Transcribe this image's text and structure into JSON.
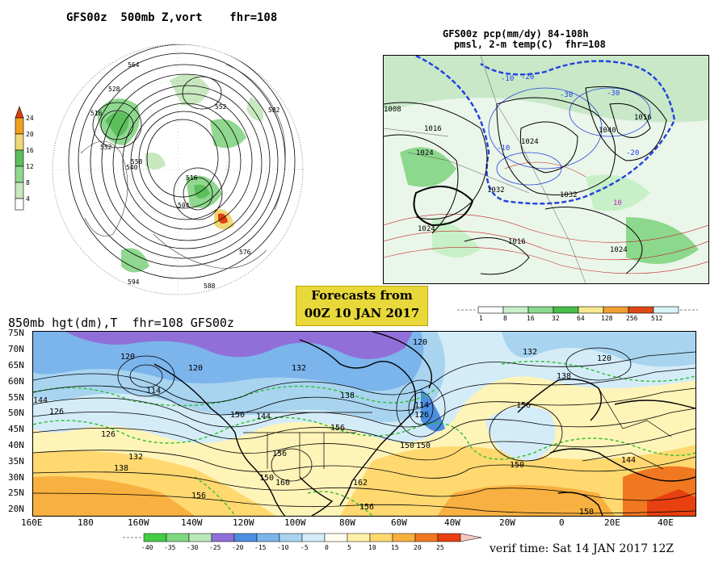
{
  "panels": {
    "polar": {
      "title": "GFS00z  500mb Z,vort    fhr=108",
      "colorbar_ticks": [
        "24",
        "20",
        "16",
        "12",
        "8",
        "4"
      ],
      "contour_labels": [
        "564",
        "528",
        "516",
        "504",
        "552",
        "582",
        "588",
        "576",
        "540",
        "594",
        "558",
        "552",
        "516"
      ]
    },
    "precip": {
      "title_line1": "GFS00z pcp(mm/dy) 84-108h",
      "title_line2": "pmsl, 2-m temp(C)  fhr=108",
      "colorbar_ticks": [
        "1",
        "8",
        "16",
        "32",
        "64",
        "128",
        "256",
        "512"
      ],
      "isobar_labels": [
        "1008",
        "1016",
        "1024",
        "1032",
        "1040",
        "1024",
        "1016",
        "1024",
        "1032",
        "1016",
        "1024"
      ],
      "temp_labels": [
        "-10",
        "-20",
        "-30",
        "-10",
        "-30",
        "-20",
        "10"
      ]
    },
    "banner": {
      "line1": "Forecasts from",
      "line2": "00Z 10 JAN 2017"
    },
    "map850": {
      "title": "850mb hgt(dm),T  fhr=108 GFS00z",
      "lat_labels": [
        "75N",
        "70N",
        "65N",
        "60N",
        "55N",
        "50N",
        "45N",
        "40N",
        "35N",
        "30N",
        "25N",
        "20N"
      ],
      "lon_labels": [
        "160E",
        "180",
        "160W",
        "140W",
        "120W",
        "100W",
        "80W",
        "60W",
        "40W",
        "20W",
        "0",
        "20E",
        "40E"
      ],
      "contour_labels": [
        "120",
        "132",
        "120",
        "144",
        "150",
        "114",
        "126",
        "144",
        "138",
        "132",
        "126",
        "156",
        "150",
        "160",
        "156",
        "162",
        "138",
        "156",
        "150",
        "114",
        "126",
        "150",
        "120",
        "132",
        "120",
        "138",
        "156",
        "144",
        "150",
        "150",
        "156"
      ],
      "colorbar_ticks": [
        "-40",
        "-35",
        "-30",
        "-25",
        "-20",
        "-15",
        "-10",
        "-5",
        "0",
        "5",
        "10",
        "15",
        "20",
        "25"
      ]
    },
    "verif": "verif time: Sat 14 JAN 2017 12Z"
  },
  "colors": {
    "vort_scale": [
      "#ffffff",
      "#c8e8c0",
      "#90d890",
      "#5cbf5c",
      "#f0d878",
      "#f0a020",
      "#e04010"
    ],
    "precip_scale": [
      "#ffffff",
      "#c8f0c8",
      "#8cd88c",
      "#48c048",
      "#f8e890",
      "#f0a030",
      "#e04818",
      "#d8f4f8"
    ],
    "temp_scale": [
      "#44cc44",
      "#80d880",
      "#b8e8b8",
      "#9070d8",
      "#4c8ee0",
      "#7cb4ec",
      "#a8d4f0",
      "#d4ecf8",
      "#fffff0",
      "#fff0a8",
      "#ffd870",
      "#f8b040",
      "#f07820",
      "#e84010"
    ],
    "banner_bg": "#e8d83a"
  }
}
